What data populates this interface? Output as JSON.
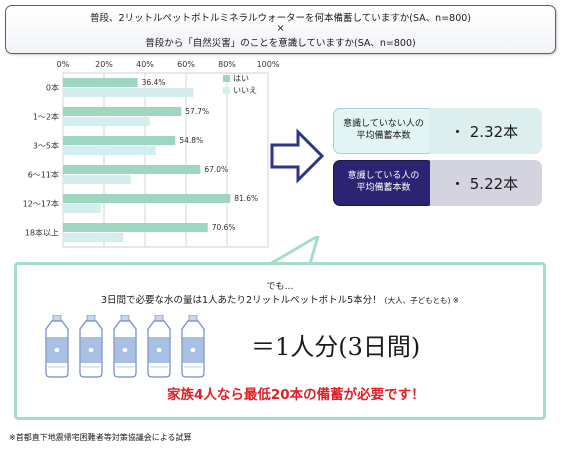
{
  "header": {
    "q1": "普段、2リットルペットボトルミネラルウォーターを何本備蓄していますか(SA、n=800)",
    "times": "×",
    "q2": "普段から「自然災害」のことを意識していますか(SA、n=800)"
  },
  "chart_data": {
    "type": "bar",
    "orientation": "horizontal",
    "categories": [
      "0本",
      "1～2本",
      "3～5本",
      "6～11本",
      "12～17本",
      "18本以上"
    ],
    "series": [
      {
        "name": "はい",
        "values": [
          36.4,
          57.7,
          54.8,
          67.0,
          81.6,
          70.6
        ],
        "labels": [
          "36.4%",
          "57.7%",
          "54.8%",
          "67.0%",
          "81.6%",
          "70.6%"
        ],
        "color": "#9fd6c2"
      },
      {
        "name": "いいえ",
        "values": [
          63.6,
          42.3,
          45.2,
          33.0,
          18.4,
          29.4
        ],
        "color": "#d4eef0"
      }
    ],
    "xaxis_ticks": [
      "0%",
      "20%",
      "40%",
      "60%",
      "80%",
      "100%"
    ],
    "xlim": [
      0,
      100
    ],
    "grid": true,
    "legend": "top-right"
  },
  "comparison": {
    "not_aware_label": "意識していない人の\n平均備蓄本数",
    "not_aware_value": "・ 2.32本",
    "aware_label": "意識している人の\n平均備蓄本数",
    "aware_value": "・ 5.22本"
  },
  "panel": {
    "demo": "でも…",
    "rule_main": "3日間で必要な水の量は1人あたり2リットルペットボトル5本分！",
    "rule_note": "(大人、子どもとも) ※",
    "bottle_count": 5,
    "per_person": "＝1人分(3日間)",
    "family": "家族4人なら最低20本の備蓄が必要です！"
  },
  "footnote": "※首都直下地震帰宅困難者等対策協議会による試算",
  "colors": {
    "accent_red": "#e01f26",
    "dark_navy": "#2b2472",
    "bottle": "#a8c0e3",
    "panel_border": "#a7ddc5"
  }
}
